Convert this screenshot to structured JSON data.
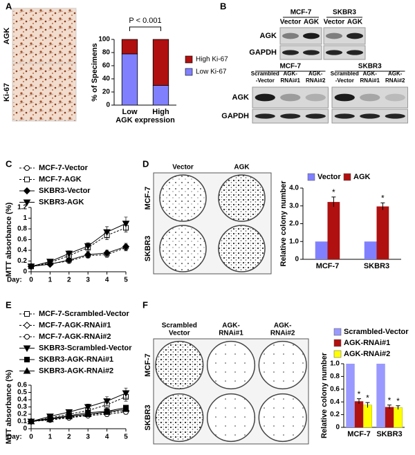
{
  "panel_labels": [
    "A",
    "B",
    "C",
    "D",
    "E",
    "F"
  ],
  "images_A": {
    "rows": [
      "AGK",
      "Ki-67"
    ]
  },
  "blots": {
    "top": {
      "groups": [
        "MCF-7",
        "SKBR3"
      ],
      "lanes": [
        [
          "Vector"
        ],
        [
          "AGK"
        ],
        [
          "Vector"
        ],
        [
          "AGK"
        ]
      ],
      "rows": [
        "AGK",
        "GAPDH"
      ]
    },
    "bottom": {
      "groups": [
        "MCF-7",
        "SKBR3"
      ],
      "lanes": [
        [
          "Scrambled",
          "-Vector"
        ],
        [
          "AGK-",
          "RNAi#1"
        ],
        [
          "AGK-",
          "RNAi#2"
        ],
        [
          "Scrambled",
          "-Vector"
        ],
        [
          "AGK-",
          "RNAi#1"
        ],
        [
          "AGK-",
          "RNAi#2"
        ]
      ],
      "rows": [
        "AGK",
        "GAPDH"
      ]
    }
  },
  "plates_D": {
    "columns": [
      [
        "Vector"
      ],
      [
        "AGK"
      ]
    ],
    "rows": [
      "MCF-7",
      "SKBR3"
    ]
  },
  "plates_F": {
    "columns": [
      [
        "Scrambled",
        "Vector"
      ],
      [
        "AGK-",
        "RNAi#1"
      ],
      [
        "AGK-",
        "RNAi#2"
      ]
    ],
    "rows": [
      "MCF-7",
      "SKBR3"
    ]
  },
  "chart_data": [
    {
      "type": "stacked_bar",
      "annotation": "P < 0.001",
      "ylabel": "% of Specimens",
      "xlabel": "AGK expression",
      "categories": [
        "Low",
        "High"
      ],
      "series": [
        {
          "name": "Low Ki-67",
          "color": "#8080ff",
          "values": [
            78,
            30
          ]
        },
        {
          "name": "High Ki-67",
          "color": "#b01010",
          "values": [
            22,
            70
          ]
        }
      ],
      "ylim": [
        0,
        100
      ],
      "yticks": [
        0,
        20,
        40,
        60,
        80,
        100
      ],
      "legend": "right"
    },
    {
      "type": "line",
      "ylabel": "MTT absorbance (%)",
      "xlabel": "Day:",
      "x": [
        0,
        1,
        2,
        3,
        4,
        5
      ],
      "xlim": [
        0,
        5
      ],
      "xticks": [
        0,
        1,
        2,
        3,
        4,
        5
      ],
      "ylim": [
        0,
        1.2
      ],
      "yticks": [
        0,
        0.2,
        0.4,
        0.6,
        0.8,
        1,
        1.2
      ],
      "legend": "upper left",
      "series": [
        {
          "name": "MCF-7-Vector",
          "color": "#000000",
          "marker": "circle",
          "filled": false,
          "dashed": true,
          "values": [
            0.1,
            0.15,
            0.2,
            0.3,
            0.32,
            0.45
          ],
          "errors": [
            0.01,
            0.02,
            0.03,
            0.04,
            0.05,
            0.06
          ]
        },
        {
          "name": "MCF-7-AGK",
          "color": "#000000",
          "marker": "square",
          "filled": false,
          "dashed": true,
          "values": [
            0.1,
            0.17,
            0.3,
            0.45,
            0.68,
            0.82
          ],
          "errors": [
            0.01,
            0.02,
            0.06,
            0.07,
            0.08,
            0.08
          ]
        },
        {
          "name": "SKBR3-Vector",
          "color": "#000000",
          "marker": "diamond",
          "filled": true,
          "dashed": false,
          "values": [
            0.1,
            0.14,
            0.22,
            0.32,
            0.35,
            0.47
          ],
          "errors": [
            0.01,
            0.02,
            0.03,
            0.05,
            0.05,
            0.06
          ]
        },
        {
          "name": "SKBR3-AGK",
          "color": "#000000",
          "marker": "triangle-down",
          "filled": true,
          "dashed": false,
          "values": [
            0.1,
            0.19,
            0.34,
            0.48,
            0.74,
            0.9
          ],
          "errors": [
            0.01,
            0.02,
            0.05,
            0.06,
            0.1,
            0.12
          ]
        }
      ]
    },
    {
      "type": "bar",
      "ylabel": "Relative colony number",
      "categories": [
        "MCF-7",
        "SKBR3"
      ],
      "ylim": [
        0,
        4
      ],
      "yticks": [
        0,
        {
          "value": 1,
          "label": "1.0"
        },
        {
          "value": 2,
          "label": "2.0"
        },
        {
          "value": 3,
          "label": "3.0"
        },
        {
          "value": 4,
          "label": "4.0"
        }
      ],
      "legend": "top",
      "series": [
        {
          "name": "Vector",
          "color": "#8080ff",
          "values": [
            1,
            1
          ]
        },
        {
          "name": "AGK",
          "color": "#b01010",
          "values": [
            3.22,
            2.97
          ],
          "errors": [
            0.28,
            0.2
          ],
          "significance": [
            "*",
            "*"
          ]
        }
      ]
    },
    {
      "type": "line",
      "ylabel": "MTT absorbance (%)",
      "xlabel": "Day:",
      "x": [
        0,
        1,
        2,
        3,
        4,
        5
      ],
      "xlim": [
        0,
        5
      ],
      "xticks": [
        0,
        1,
        2,
        3,
        4,
        5
      ],
      "ylim": [
        0,
        0.6
      ],
      "yticks": [
        0,
        0.1,
        0.2,
        0.3,
        0.4,
        0.5,
        0.6
      ],
      "legend": "upper left",
      "series": [
        {
          "name": "MCF-7-Scrambled-Vector",
          "color": "#000000",
          "marker": "square",
          "filled": false,
          "dashed": true,
          "values": [
            0.1,
            0.15,
            0.2,
            0.25,
            0.33,
            0.44
          ],
          "errors": [
            0.01,
            0.02,
            0.03,
            0.04,
            0.05,
            0.06
          ]
        },
        {
          "name": "MCF-7-AGK-RNAi#1",
          "color": "#000000",
          "marker": "diamond",
          "filled": false,
          "dashed": true,
          "values": [
            0.1,
            0.13,
            0.16,
            0.19,
            0.22,
            0.25
          ],
          "errors": [
            0.01,
            0.01,
            0.02,
            0.02,
            0.03,
            0.03
          ]
        },
        {
          "name": "MCF-7-AGK-RNAi#2",
          "color": "#000000",
          "marker": "circle",
          "filled": false,
          "dashed": true,
          "values": [
            0.1,
            0.12,
            0.15,
            0.18,
            0.2,
            0.23
          ],
          "errors": [
            0.01,
            0.01,
            0.02,
            0.02,
            0.03,
            0.03
          ]
        },
        {
          "name": "SKBR3-Scrambled-Vector",
          "color": "#000000",
          "marker": "triangle-down",
          "filled": true,
          "dashed": false,
          "values": [
            0.1,
            0.17,
            0.23,
            0.3,
            0.38,
            0.49
          ],
          "errors": [
            0.01,
            0.02,
            0.03,
            0.04,
            0.06,
            0.07
          ]
        },
        {
          "name": "SKBR3-AGK-RNAi#1",
          "color": "#000000",
          "marker": "square",
          "filled": true,
          "dashed": false,
          "values": [
            0.1,
            0.14,
            0.18,
            0.22,
            0.24,
            0.29
          ],
          "errors": [
            0.01,
            0.01,
            0.02,
            0.02,
            0.03,
            0.03
          ]
        },
        {
          "name": "SKBR3-AGK-RNAi#2",
          "color": "#000000",
          "marker": "triangle-up",
          "filled": true,
          "dashed": false,
          "values": [
            0.1,
            0.13,
            0.17,
            0.2,
            0.23,
            0.27
          ],
          "errors": [
            0.01,
            0.01,
            0.02,
            0.02,
            0.03,
            0.03
          ]
        }
      ]
    },
    {
      "type": "bar",
      "ylabel": "Relative colony number",
      "categories": [
        "MCF-7",
        "SKBR3"
      ],
      "ylim": [
        0,
        1
      ],
      "yticks": [
        0,
        0.2,
        0.4,
        0.6,
        0.8,
        {
          "value": 1,
          "label": "1.0"
        }
      ],
      "legend": "top right",
      "series": [
        {
          "name": "Scrambled-Vector",
          "color": "#9999ff",
          "values": [
            1,
            1
          ]
        },
        {
          "name": "AGK-RNAi#1",
          "color": "#b01010",
          "values": [
            0.41,
            0.32
          ],
          "errors": [
            0.04,
            0.03
          ],
          "significance": [
            "*",
            "*"
          ]
        },
        {
          "name": "AGK-RNAi#2",
          "color": "#ffff00",
          "values": [
            0.35,
            0.31
          ],
          "errors": [
            0.04,
            0.03
          ],
          "significance": [
            "*",
            "*"
          ]
        }
      ]
    }
  ]
}
